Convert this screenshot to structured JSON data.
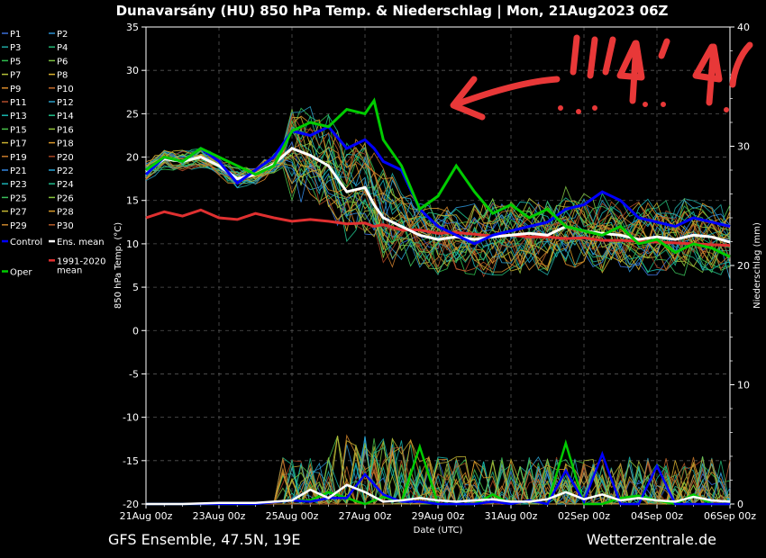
{
  "title": "Dunavarsány  (HU)  850 hPa Temp. & Niederschlag | Mon, 21Aug2023 06Z",
  "footer_left": "GFS Ensemble, 47.5N, 19E",
  "footer_right": "Wetterzentrale.de",
  "colors": {
    "control": "#0000ff",
    "ens_mean": "#ffffff",
    "climate": "#e03030",
    "oper": "#00cc00",
    "annotation": "#e83838"
  },
  "chart_data": {
    "type": "line",
    "title": "Dunavarsány  (HU)  850 hPa Temp. & Niederschlag | Mon, 21Aug2023 06Z",
    "xlabel": "Date (UTC)",
    "ylabel": "850 hPa Temp. (°C)",
    "y2label": "Niederschlag (mm)",
    "ylim": [
      -20,
      35
    ],
    "y2lim": [
      0,
      40
    ],
    "yticks": [
      "35",
      "30",
      "25",
      "20",
      "15",
      "10",
      "5",
      "0",
      "-5",
      "-10",
      "-15",
      "-20"
    ],
    "y2ticks": [
      "40",
      "30",
      "20",
      "10",
      "0"
    ],
    "x_dates": [
      "21Aug 00z",
      "23Aug 00z",
      "25Aug 00z",
      "27Aug 00z",
      "29Aug 00z",
      "31Aug 00z",
      "02Sep 00z",
      "04Sep 00z",
      "06Sep 00z"
    ],
    "grid": true,
    "legend_position": "left-outside",
    "legend": [
      "P1",
      "P2",
      "P3",
      "P4",
      "P5",
      "P6",
      "P7",
      "P8",
      "P9",
      "P10",
      "P11",
      "P12",
      "P13",
      "P14",
      "P15",
      "P16",
      "P17",
      "P18",
      "P19",
      "P20",
      "P21",
      "P22",
      "P23",
      "P24",
      "P25",
      "P26",
      "P27",
      "P28",
      "P29",
      "P30",
      "Control",
      "Ens. mean",
      "1991-2020 mean",
      "Oper"
    ],
    "series": [
      {
        "name": "Oper",
        "color": "#00cc00",
        "x_hours": [
          0,
          12,
          24,
          36,
          48,
          60,
          72,
          84,
          96,
          108,
          120,
          132,
          144,
          150,
          156,
          168,
          180,
          192,
          204,
          216,
          228,
          240,
          252,
          264,
          276,
          288,
          300,
          312,
          324,
          336,
          348,
          360,
          372,
          384
        ],
        "values": [
          18.5,
          20,
          19.5,
          21,
          20,
          19,
          18,
          19,
          23,
          24,
          23.5,
          25.5,
          25,
          26.5,
          22,
          19,
          14,
          15.5,
          19,
          16,
          13.5,
          14.5,
          13,
          14,
          12,
          11.5,
          11,
          12,
          10,
          10.5,
          9,
          10,
          9.5,
          8.5
        ]
      },
      {
        "name": "Control",
        "color": "#0000ff",
        "x_hours": [
          0,
          12,
          24,
          36,
          48,
          60,
          72,
          84,
          96,
          108,
          120,
          132,
          144,
          150,
          156,
          168,
          180,
          192,
          204,
          216,
          228,
          240,
          252,
          264,
          276,
          288,
          300,
          312,
          324,
          336,
          348,
          360,
          372,
          384
        ],
        "values": [
          18,
          20,
          19.5,
          21,
          19.5,
          17,
          18.5,
          20,
          23,
          22.5,
          23.5,
          21,
          22,
          21,
          19.5,
          18.5,
          14,
          12,
          11,
          10,
          11,
          11.5,
          12,
          12.5,
          14,
          14.5,
          16,
          15,
          13,
          12.5,
          12,
          13,
          12.5,
          12
        ]
      },
      {
        "name": "Ens. mean",
        "color": "#ffffff",
        "x_hours": [
          0,
          12,
          24,
          36,
          48,
          60,
          72,
          84,
          96,
          108,
          120,
          132,
          144,
          150,
          156,
          168,
          180,
          192,
          204,
          216,
          228,
          240,
          252,
          264,
          276,
          288,
          300,
          312,
          324,
          336,
          348,
          360,
          372,
          384
        ],
        "values": [
          18.3,
          19.8,
          19.5,
          20,
          19,
          17.5,
          18,
          19.2,
          21,
          20.2,
          19,
          16,
          16.5,
          14.5,
          13,
          12,
          11,
          10.5,
          10.8,
          10.5,
          10.8,
          11,
          11.2,
          11,
          12,
          11.5,
          11.2,
          11,
          10.5,
          10.8,
          10.5,
          11,
          10.8,
          10.2
        ]
      },
      {
        "name": "1991-2020 mean",
        "color": "#e03030",
        "x_hours": [
          0,
          12,
          24,
          36,
          48,
          60,
          72,
          84,
          96,
          108,
          120,
          132,
          144,
          150,
          156,
          168,
          180,
          192,
          204,
          216,
          228,
          240,
          252,
          264,
          276,
          288,
          300,
          312,
          324,
          336,
          348,
          360,
          372,
          384
        ],
        "values": [
          13,
          13.7,
          13.2,
          13.9,
          13,
          12.8,
          13.5,
          13,
          12.6,
          12.8,
          12.6,
          12.3,
          12.4,
          12,
          12.2,
          11.6,
          11.6,
          11.2,
          11.3,
          11.1,
          10.9,
          11,
          10.8,
          10.8,
          10.6,
          10.7,
          10.4,
          10.4,
          10.3,
          10.2,
          10.1,
          10,
          9.9,
          9.8
        ]
      }
    ],
    "precip_mm": {
      "x_hours": [
        0,
        24,
        48,
        72,
        96,
        108,
        120,
        132,
        144,
        156,
        168,
        180,
        192,
        204,
        216,
        228,
        240,
        252,
        264,
        276,
        288,
        300,
        312,
        324,
        336,
        348,
        360,
        372,
        384
      ],
      "oper": [
        0,
        0,
        0,
        0,
        0.3,
        0.3,
        1,
        0.5,
        0,
        0.6,
        0.2,
        4.8,
        0,
        0,
        0,
        0.8,
        0,
        0.3,
        0,
        5.1,
        0,
        0,
        0.5,
        0.7,
        0.3,
        0,
        0.8,
        0,
        0
      ],
      "control": [
        0,
        0,
        0,
        0,
        0.3,
        0.2,
        0.5,
        0.5,
        2.5,
        0.8,
        0.2,
        0.2,
        0,
        0,
        0,
        0.2,
        0,
        0.3,
        0,
        2.8,
        0.2,
        4.2,
        0,
        0,
        3.2,
        0,
        0,
        0,
        0
      ],
      "ens_mean": [
        0,
        0,
        0.1,
        0.1,
        0.3,
        1.2,
        0.5,
        1.6,
        1.0,
        0.2,
        0.3,
        0.5,
        0.3,
        0.2,
        0.3,
        0.4,
        0.2,
        0.2,
        0.4,
        1.0,
        0.4,
        0.8,
        0.3,
        0.5,
        0.3,
        0.2,
        0.6,
        0.3,
        0.2
      ]
    }
  }
}
